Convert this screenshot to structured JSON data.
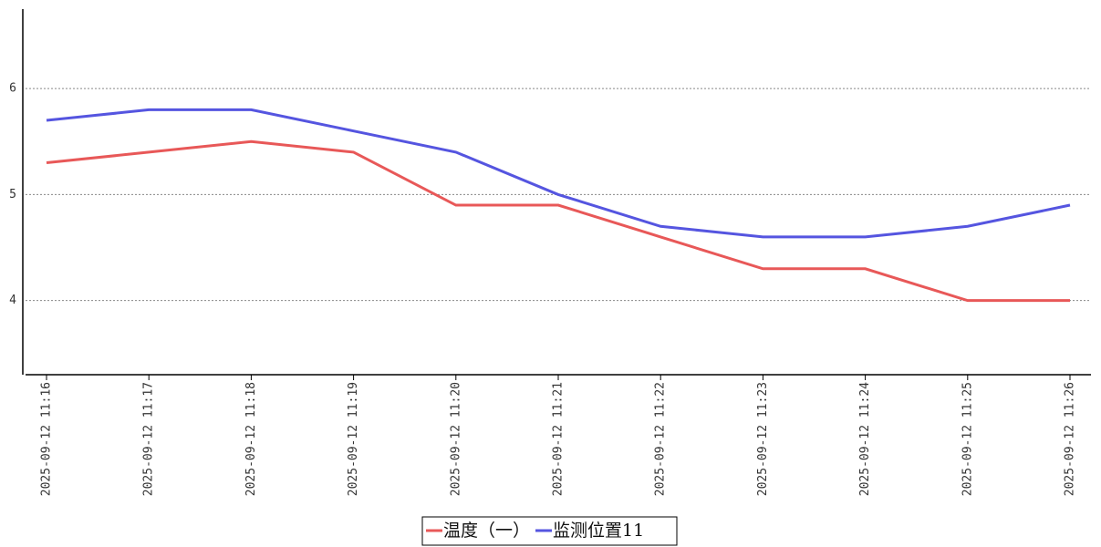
{
  "chart_data": {
    "type": "line",
    "categories": [
      "2025-09-12 11:16",
      "2025-09-12 11:17",
      "2025-09-12 11:18",
      "2025-09-12 11:19",
      "2025-09-12 11:20",
      "2025-09-12 11:21",
      "2025-09-12 11:22",
      "2025-09-12 11:23",
      "2025-09-12 11:24",
      "2025-09-12 11:25",
      "2025-09-12 11:26"
    ],
    "series": [
      {
        "name": "温度（一）",
        "color": "#e85858",
        "values": [
          5.3,
          5.4,
          5.5,
          5.4,
          4.9,
          4.9,
          4.6,
          4.3,
          4.3,
          4.0,
          4.0
        ]
      },
      {
        "name": "监测位置11",
        "color": "#5555e0",
        "values": [
          5.7,
          5.8,
          5.8,
          5.6,
          5.4,
          5.0,
          4.7,
          4.6,
          4.6,
          4.7,
          4.9
        ]
      }
    ],
    "ylim": [
      3.3,
      6.75
    ],
    "yticks": [
      4,
      5,
      6
    ],
    "grid": true,
    "legend": "bottom"
  }
}
